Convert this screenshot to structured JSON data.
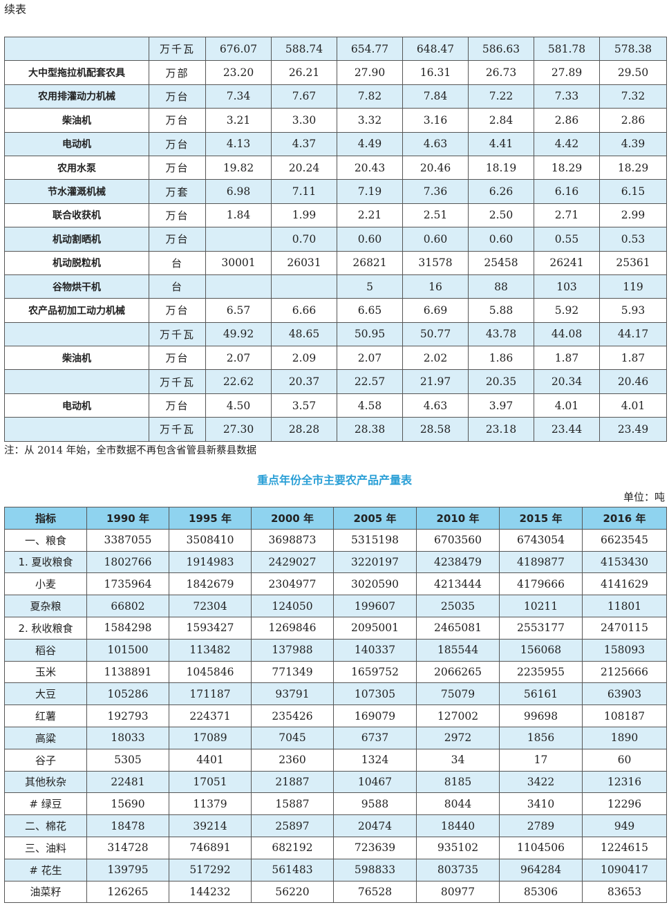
{
  "continued_label": "续表",
  "table1": {
    "rows": [
      {
        "name": "",
        "unit": "万千瓦",
        "values": [
          "676.07",
          "588.74",
          "654.77",
          "648.47",
          "586.63",
          "581.78",
          "578.38"
        ]
      },
      {
        "name": "大中型拖拉机配套农具",
        "unit": "万部",
        "values": [
          "23.20",
          "26.21",
          "27.90",
          "16.31",
          "26.73",
          "27.89",
          "29.50"
        ]
      },
      {
        "name": "农用排灌动力机械",
        "unit": "万台",
        "values": [
          "7.34",
          "7.67",
          "7.82",
          "7.84",
          "7.22",
          "7.33",
          "7.32"
        ]
      },
      {
        "name": "柴油机",
        "unit": "万台",
        "values": [
          "3.21",
          "3.30",
          "3.32",
          "3.16",
          "2.84",
          "2.86",
          "2.86"
        ]
      },
      {
        "name": "电动机",
        "unit": "万台",
        "values": [
          "4.13",
          "4.37",
          "4.49",
          "4.63",
          "4.41",
          "4.42",
          "4.39"
        ]
      },
      {
        "name": "农用水泵",
        "unit": "万台",
        "values": [
          "19.82",
          "20.24",
          "20.43",
          "20.46",
          "18.19",
          "18.29",
          "18.29"
        ]
      },
      {
        "name": "节水灌溉机械",
        "unit": "万套",
        "values": [
          "6.98",
          "7.11",
          "7.19",
          "7.36",
          "6.26",
          "6.16",
          "6.15"
        ]
      },
      {
        "name": "联合收获机",
        "unit": "万台",
        "values": [
          "1.84",
          "1.99",
          "2.21",
          "2.51",
          "2.50",
          "2.71",
          "2.99"
        ]
      },
      {
        "name": "机动割晒机",
        "unit": "万台",
        "values": [
          "",
          "0.70",
          "0.60",
          "0.60",
          "0.60",
          "0.55",
          "0.53"
        ]
      },
      {
        "name": "机动脱粒机",
        "unit": "台",
        "values": [
          "30001",
          "26031",
          "26821",
          "31578",
          "25458",
          "26241",
          "25361"
        ]
      },
      {
        "name": "谷物烘干机",
        "unit": "台",
        "values": [
          "",
          "",
          "5",
          "16",
          "88",
          "103",
          "119"
        ]
      },
      {
        "name": "农产品初加工动力机械",
        "unit": "万台",
        "values": [
          "6.57",
          "6.66",
          "6.65",
          "6.69",
          "5.88",
          "5.92",
          "5.93"
        ]
      },
      {
        "name": "",
        "unit": "万千瓦",
        "values": [
          "49.92",
          "48.65",
          "50.95",
          "50.77",
          "43.78",
          "44.08",
          "44.17"
        ]
      },
      {
        "name": "柴油机",
        "unit": "万台",
        "values": [
          "2.07",
          "2.09",
          "2.07",
          "2.02",
          "1.86",
          "1.87",
          "1.87"
        ]
      },
      {
        "name": "",
        "unit": "万千瓦",
        "values": [
          "22.62",
          "20.37",
          "22.57",
          "21.97",
          "20.35",
          "20.34",
          "20.46"
        ]
      },
      {
        "name": "电动机",
        "unit": "万台",
        "values": [
          "4.50",
          "3.57",
          "4.58",
          "4.63",
          "3.97",
          "4.01",
          "4.01"
        ]
      },
      {
        "name": "",
        "unit": "万千瓦",
        "values": [
          "27.30",
          "28.28",
          "28.38",
          "28.58",
          "23.18",
          "23.44",
          "23.49"
        ]
      }
    ]
  },
  "note": "注：从 2014 年始，全市数据不再包含省管县新蔡县数据",
  "table2": {
    "title": "重点年份全市主要农产品产量表",
    "unit_label": "单位：吨",
    "headers": [
      "指标",
      "1990 年",
      "1995 年",
      "2000 年",
      "2005 年",
      "2010 年",
      "2015 年",
      "2016 年"
    ],
    "rows": [
      {
        "name": "一、粮食",
        "values": [
          "3387055",
          "3508410",
          "3698873",
          "5315198",
          "6703560",
          "6743054",
          "6623545"
        ]
      },
      {
        "name": "1. 夏收粮食",
        "values": [
          "1802766",
          "1914983",
          "2429027",
          "3220197",
          "4238479",
          "4189877",
          "4153430"
        ]
      },
      {
        "name": "小麦",
        "values": [
          "1735964",
          "1842679",
          "2304977",
          "3020590",
          "4213444",
          "4179666",
          "4141629"
        ]
      },
      {
        "name": "夏杂粮",
        "values": [
          "66802",
          "72304",
          "124050",
          "199607",
          "25035",
          "10211",
          "11801"
        ]
      },
      {
        "name": "2. 秋收粮食",
        "values": [
          "1584298",
          "1593427",
          "1269846",
          "2095001",
          "2465081",
          "2553177",
          "2470115"
        ]
      },
      {
        "name": "稻谷",
        "values": [
          "101500",
          "113482",
          "137988",
          "140337",
          "185544",
          "156068",
          "158093"
        ]
      },
      {
        "name": "玉米",
        "values": [
          "1138891",
          "1045846",
          "771349",
          "1659752",
          "2066265",
          "2235955",
          "2125666"
        ]
      },
      {
        "name": "大豆",
        "values": [
          "105286",
          "171187",
          "93791",
          "107305",
          "75079",
          "56161",
          "63903"
        ]
      },
      {
        "name": "红薯",
        "values": [
          "192793",
          "224371",
          "235426",
          "169079",
          "127002",
          "99698",
          "108187"
        ]
      },
      {
        "name": "高粱",
        "values": [
          "18033",
          "17089",
          "7045",
          "6737",
          "2972",
          "1856",
          "1890"
        ]
      },
      {
        "name": "谷子",
        "values": [
          "5305",
          "4401",
          "2360",
          "1324",
          "34",
          "17",
          "60"
        ]
      },
      {
        "name": "其他秋杂",
        "values": [
          "22481",
          "17051",
          "21887",
          "10467",
          "8185",
          "3422",
          "12316"
        ]
      },
      {
        "name": "# 绿豆",
        "values": [
          "15690",
          "11379",
          "15887",
          "9588",
          "8044",
          "3410",
          "12296"
        ]
      },
      {
        "name": "二、棉花",
        "values": [
          "18478",
          "39214",
          "25897",
          "20474",
          "18440",
          "2789",
          "949"
        ]
      },
      {
        "name": "三、油料",
        "values": [
          "314728",
          "746891",
          "682192",
          "723639",
          "935102",
          "1104506",
          "1224615"
        ]
      },
      {
        "name": "# 花生",
        "values": [
          "139795",
          "517292",
          "561483",
          "598833",
          "803735",
          "964284",
          "1090417"
        ]
      },
      {
        "name": "油菜籽",
        "values": [
          "126265",
          "144232",
          "56220",
          "76528",
          "80977",
          "85306",
          "83653"
        ]
      }
    ]
  }
}
